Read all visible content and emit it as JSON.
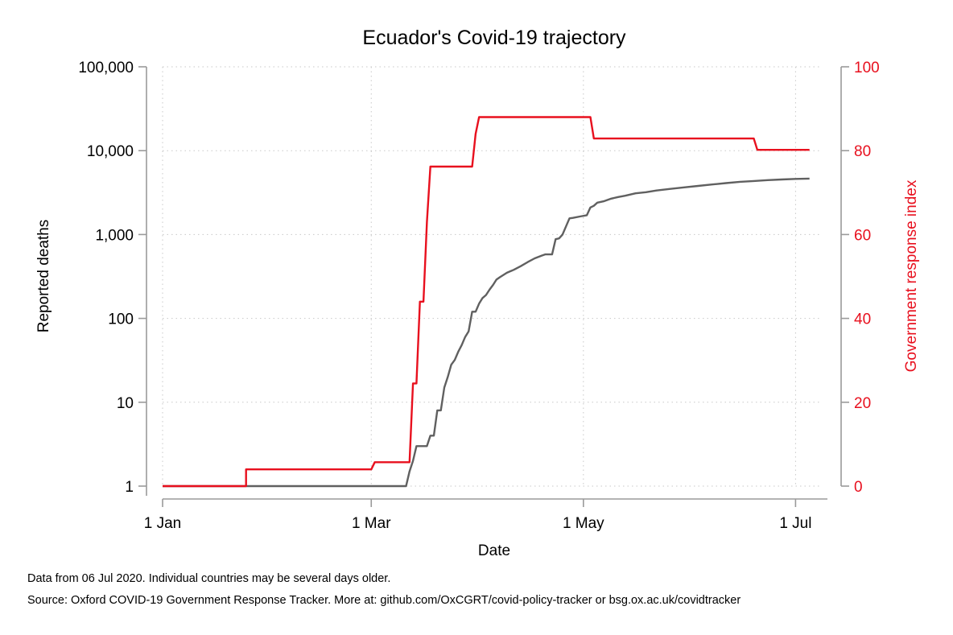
{
  "chart_data": {
    "type": "line",
    "title": "Ecuador's Covid-19 trajectory",
    "xlabel": "Date",
    "ylabel_left": "Reported deaths",
    "ylabel_right": "Government response index",
    "x_ticks": [
      {
        "day": 0,
        "label": "1 Jan"
      },
      {
        "day": 60,
        "label": "1 Mar"
      },
      {
        "day": 121,
        "label": "1 May"
      },
      {
        "day": 182,
        "label": "1 Jul"
      }
    ],
    "xlim": [
      0,
      187
    ],
    "y_left": {
      "scale": "log",
      "range": [
        1,
        100000
      ],
      "ticks": [
        {
          "value": 1,
          "label": "1"
        },
        {
          "value": 10,
          "label": "10"
        },
        {
          "value": 100,
          "label": "100"
        },
        {
          "value": 1000,
          "label": "1,000"
        },
        {
          "value": 10000,
          "label": "10,000"
        },
        {
          "value": 100000,
          "label": "100,000"
        }
      ]
    },
    "y_right": {
      "scale": "linear",
      "range": [
        0,
        100
      ],
      "ticks": [
        {
          "value": 0,
          "label": "0"
        },
        {
          "value": 20,
          "label": "20"
        },
        {
          "value": 40,
          "label": "40"
        },
        {
          "value": 60,
          "label": "60"
        },
        {
          "value": 80,
          "label": "80"
        },
        {
          "value": 100,
          "label": "100"
        }
      ]
    },
    "grid": true,
    "series": [
      {
        "name": "Reported deaths",
        "axis": "left",
        "color": "#606060",
        "points": [
          [
            0,
            1
          ],
          [
            70,
            1
          ],
          [
            71,
            1.5
          ],
          [
            72,
            2
          ],
          [
            73,
            3
          ],
          [
            75,
            3
          ],
          [
            76,
            3
          ],
          [
            77,
            4
          ],
          [
            78,
            4
          ],
          [
            79,
            8
          ],
          [
            80,
            8
          ],
          [
            81,
            15
          ],
          [
            82,
            20
          ],
          [
            83,
            28
          ],
          [
            84,
            32
          ],
          [
            85,
            40
          ],
          [
            86,
            48
          ],
          [
            87,
            60
          ],
          [
            88,
            70
          ],
          [
            89,
            120
          ],
          [
            90,
            120
          ],
          [
            91,
            150
          ],
          [
            92,
            175
          ],
          [
            93,
            190
          ],
          [
            94,
            220
          ],
          [
            95,
            250
          ],
          [
            96,
            290
          ],
          [
            97,
            310
          ],
          [
            99,
            350
          ],
          [
            101,
            380
          ],
          [
            103,
            420
          ],
          [
            105,
            470
          ],
          [
            107,
            520
          ],
          [
            109,
            560
          ],
          [
            110,
            580
          ],
          [
            112,
            580
          ],
          [
            113,
            880
          ],
          [
            114,
            900
          ],
          [
            115,
            1000
          ],
          [
            116,
            1250
          ],
          [
            117,
            1560
          ],
          [
            118,
            1580
          ],
          [
            120,
            1640
          ],
          [
            122,
            1700
          ],
          [
            123,
            2100
          ],
          [
            124,
            2200
          ],
          [
            125,
            2400
          ],
          [
            127,
            2500
          ],
          [
            129,
            2680
          ],
          [
            131,
            2800
          ],
          [
            133,
            2900
          ],
          [
            136,
            3100
          ],
          [
            139,
            3200
          ],
          [
            142,
            3350
          ],
          [
            146,
            3500
          ],
          [
            150,
            3650
          ],
          [
            154,
            3800
          ],
          [
            158,
            3950
          ],
          [
            162,
            4100
          ],
          [
            166,
            4250
          ],
          [
            170,
            4350
          ],
          [
            174,
            4450
          ],
          [
            178,
            4530
          ],
          [
            182,
            4600
          ],
          [
            186,
            4650
          ]
        ]
      },
      {
        "name": "Government response index",
        "axis": "right",
        "color": "#e8101e",
        "points": [
          [
            0,
            0
          ],
          [
            24,
            0
          ],
          [
            24,
            4
          ],
          [
            60,
            4
          ],
          [
            61,
            5.7
          ],
          [
            71,
            5.7
          ],
          [
            72,
            24.5
          ],
          [
            73,
            24.5
          ],
          [
            74,
            44
          ],
          [
            75,
            44
          ],
          [
            76,
            63
          ],
          [
            77,
            76.2
          ],
          [
            89,
            76.2
          ],
          [
            90,
            84
          ],
          [
            91,
            88
          ],
          [
            123,
            88
          ],
          [
            124,
            82.9
          ],
          [
            170,
            82.9
          ],
          [
            171,
            80.2
          ],
          [
            186,
            80.2
          ]
        ]
      }
    ]
  },
  "footnotes": {
    "line1": "Data from 06 Jul 2020. Individual countries may be several days older.",
    "line2": "Source: Oxford COVID-19 Government Response Tracker. More at: github.com/OxCGRT/covid-policy-tracker or bsg.ox.ac.uk/covidtracker"
  }
}
